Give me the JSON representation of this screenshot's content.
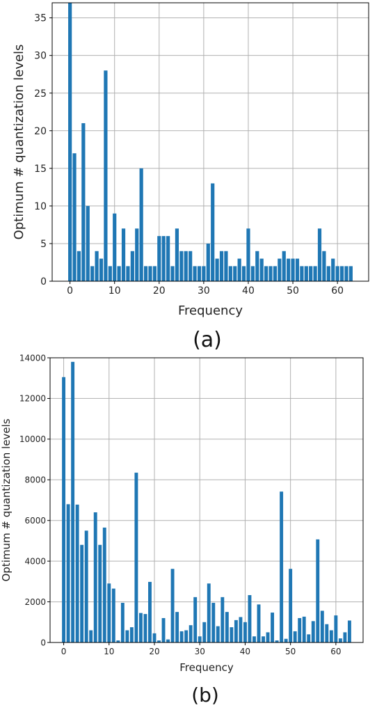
{
  "colors": {
    "bar": "#1f77b4",
    "grid": "#b0b0b0",
    "frame": "#000000"
  },
  "chart_data": [
    {
      "type": "bar",
      "caption": "(a)",
      "xlabel": "Frequency",
      "ylabel": "Optimum # quantization levels",
      "xlim": [
        -4,
        67
      ],
      "ylim": [
        0,
        37
      ],
      "xticks": [
        0,
        10,
        20,
        30,
        40,
        50,
        60
      ],
      "yticks": [
        0,
        5,
        10,
        15,
        20,
        25,
        30,
        35
      ],
      "grid": true,
      "x": [
        0,
        1,
        2,
        3,
        4,
        5,
        6,
        7,
        8,
        9,
        10,
        11,
        12,
        13,
        14,
        15,
        16,
        17,
        18,
        19,
        20,
        21,
        22,
        23,
        24,
        25,
        26,
        27,
        28,
        29,
        30,
        31,
        32,
        33,
        34,
        35,
        36,
        37,
        38,
        39,
        40,
        41,
        42,
        43,
        44,
        45,
        46,
        47,
        48,
        49,
        50,
        51,
        52,
        53,
        54,
        55,
        56,
        57,
        58,
        59,
        60,
        61,
        62,
        63
      ],
      "values": [
        37,
        17,
        4,
        21,
        10,
        2,
        4,
        3,
        28,
        2,
        9,
        2,
        7,
        2,
        4,
        7,
        15,
        2,
        2,
        2,
        6,
        6,
        6,
        2,
        7,
        4,
        4,
        4,
        2,
        2,
        2,
        5,
        13,
        3,
        4,
        4,
        2,
        2,
        3,
        2,
        7,
        2,
        4,
        3,
        2,
        2,
        2,
        3,
        4,
        3,
        3,
        3,
        2,
        2,
        2,
        2,
        7,
        4,
        2,
        3,
        2,
        2,
        2,
        2
      ]
    },
    {
      "type": "bar",
      "caption": "(b)",
      "xlabel": "Frequency",
      "ylabel": "Optimum # quantization levels",
      "xlim": [
        -3,
        66
      ],
      "ylim": [
        0,
        14000
      ],
      "xticks": [
        0,
        10,
        20,
        30,
        40,
        50,
        60
      ],
      "yticks": [
        0,
        2000,
        4000,
        6000,
        8000,
        10000,
        12000,
        14000
      ],
      "grid": true,
      "x": [
        0,
        1,
        2,
        3,
        4,
        5,
        6,
        7,
        8,
        9,
        10,
        11,
        12,
        13,
        14,
        15,
        16,
        17,
        18,
        19,
        20,
        21,
        22,
        23,
        24,
        25,
        26,
        27,
        28,
        29,
        30,
        31,
        32,
        33,
        34,
        35,
        36,
        37,
        38,
        39,
        40,
        41,
        42,
        43,
        44,
        45,
        46,
        47,
        48,
        49,
        50,
        51,
        52,
        53,
        54,
        55,
        56,
        57,
        58,
        59,
        60,
        61,
        62,
        63
      ],
      "values": [
        13050,
        6800,
        13800,
        6780,
        4800,
        5500,
        600,
        6400,
        4800,
        5650,
        2900,
        2650,
        100,
        1950,
        600,
        750,
        8350,
        1450,
        1400,
        2980,
        450,
        100,
        1200,
        150,
        3620,
        1500,
        550,
        600,
        850,
        2230,
        300,
        1000,
        2900,
        1950,
        800,
        2230,
        1500,
        750,
        1100,
        1250,
        1000,
        2330,
        300,
        1870,
        300,
        500,
        1470,
        100,
        7420,
        180,
        3620,
        550,
        1200,
        1270,
        400,
        1050,
        5070,
        1560,
        900,
        600,
        1330,
        200,
        500,
        1080
      ]
    }
  ]
}
